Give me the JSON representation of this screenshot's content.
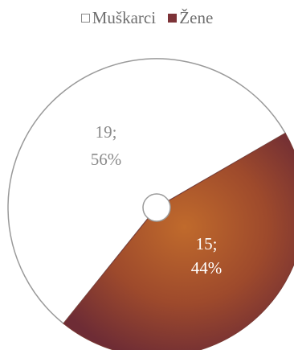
{
  "chart_data": {
    "type": "pie",
    "legend_position": "top",
    "slices": [
      {
        "name": "Muškarci",
        "value": 19,
        "percent": "56%",
        "label_value": "19;",
        "color": "#ffffff",
        "label_color": "#8a8a8a"
      },
      {
        "name": "Žene",
        "value": 15,
        "percent": "44%",
        "label_value": "15;",
        "color": "#9b4a2a",
        "label_color": "#ffffff"
      }
    ]
  }
}
